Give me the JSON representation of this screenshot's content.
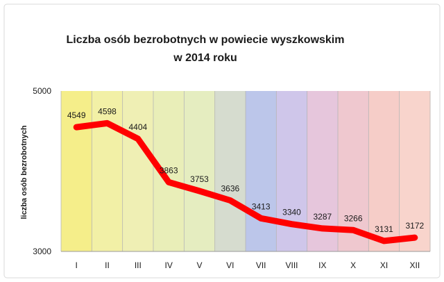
{
  "chart_data": {
    "type": "line",
    "title_lines": [
      "Liczba osób bezrobotnych w powiecie wyszkowskim",
      "w 2014 roku"
    ],
    "xlabel": "",
    "ylabel": "liczba osób bezrobotnych",
    "categories": [
      "I",
      "II",
      "III",
      "IV",
      "V",
      "VI",
      "VII",
      "VIII",
      "IX",
      "X",
      "XI",
      "XII"
    ],
    "series": [
      {
        "values": [
          4549,
          4598,
          4404,
          3863,
          3753,
          3636,
          3413,
          3340,
          3287,
          3266,
          3131,
          3172
        ]
      }
    ],
    "data_labels": [
      "4549",
      "4598",
      "4404",
      "3863",
      "3753",
      "3636",
      "3413",
      "3340",
      "3287",
      "3266",
      "3131",
      "3172"
    ],
    "ylim": [
      3000,
      5000
    ],
    "y_ticks": [
      "3000",
      "5000"
    ],
    "line_color": "#ff0000",
    "background_colors": [
      "#f5ee8a",
      "#f2f0a6",
      "#efefb4",
      "#e9eeb8",
      "#e5edc0",
      "#d6dccf",
      "#bcc6ea",
      "#cfc6ea",
      "#e6c6dc",
      "#efc8cf",
      "#f6cdc8",
      "#f8d4cc"
    ],
    "grid": "vertical-category-lines"
  }
}
